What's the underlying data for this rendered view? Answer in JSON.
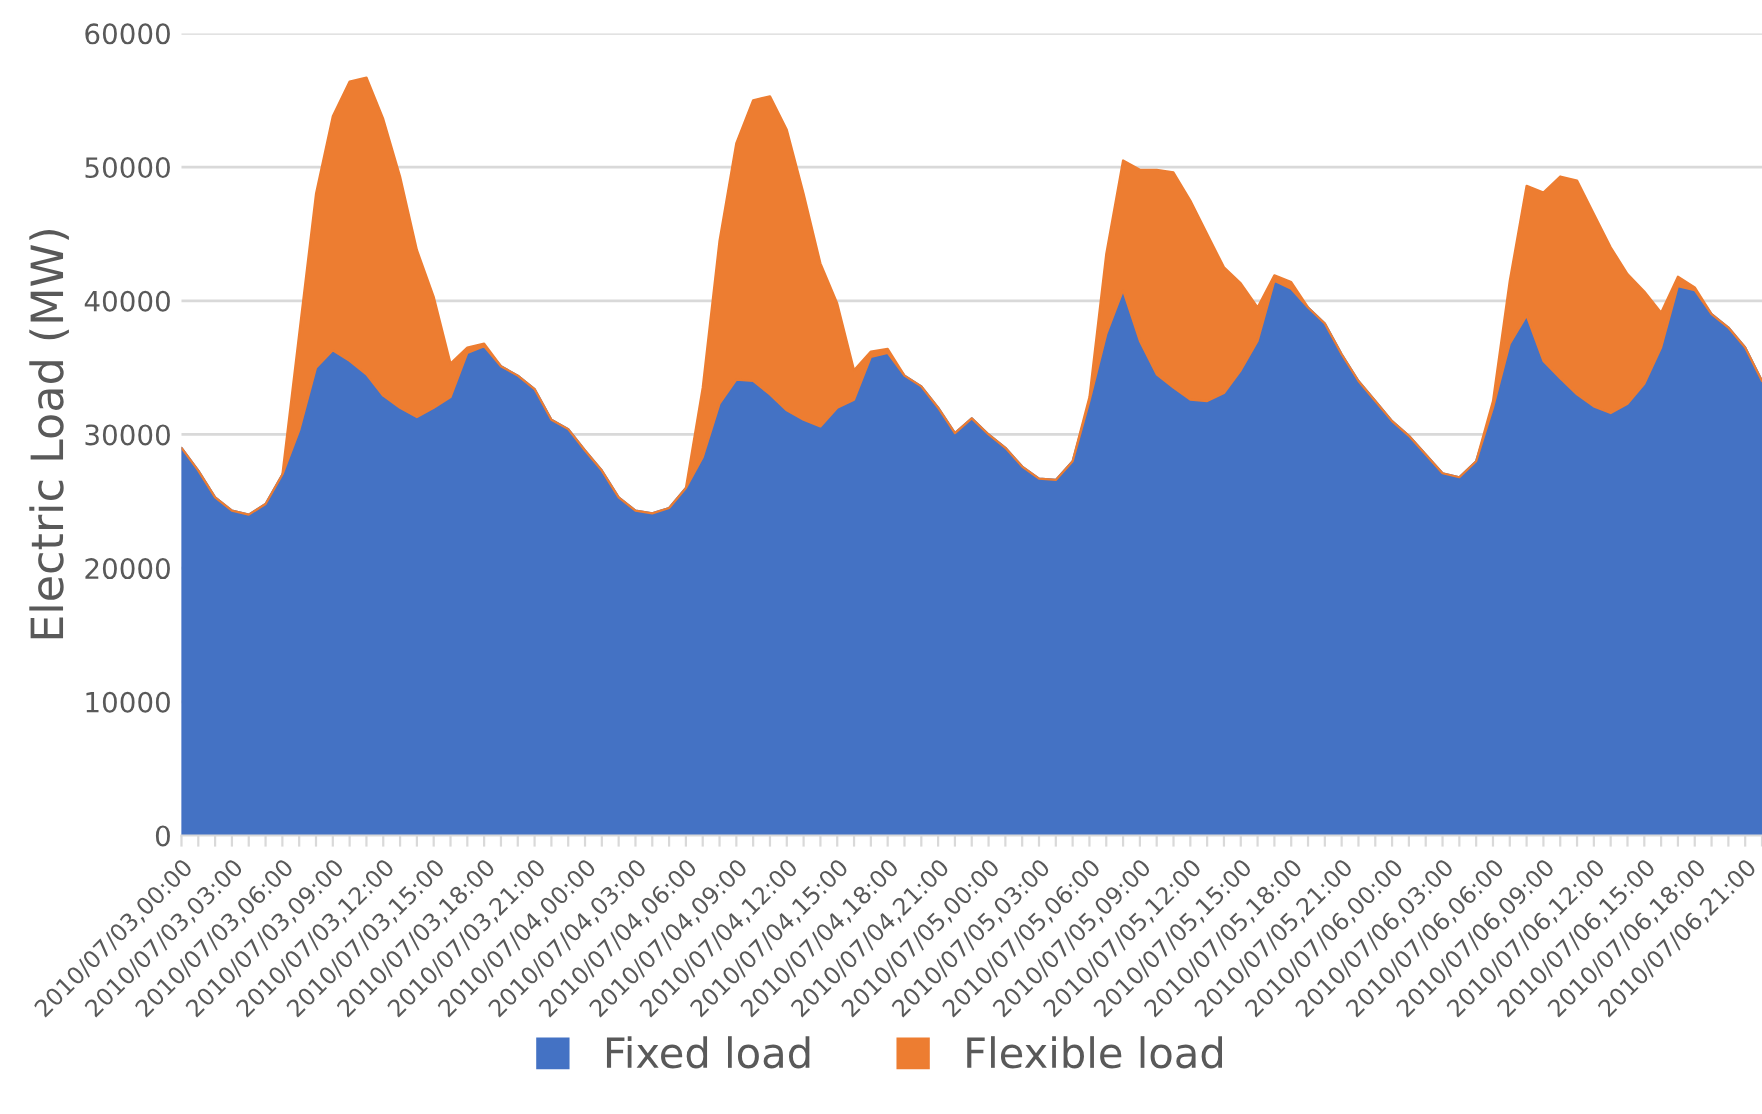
{
  "chart_data": {
    "type": "area",
    "stacked": true,
    "ylabel": "Electric Load (MW)",
    "categories": [
      "2010/07/03,00:00",
      null,
      null,
      "2010/07/03,03:00",
      null,
      null,
      "2010/07/03,06:00",
      null,
      null,
      "2010/07/03,09:00",
      null,
      null,
      "2010/07/03,12:00",
      null,
      null,
      "2010/07/03,15:00",
      null,
      null,
      "2010/07/03,18:00",
      null,
      null,
      "2010/07/03,21:00",
      null,
      null,
      "2010/07/04,00:00",
      null,
      null,
      "2010/07/04,03:00",
      null,
      null,
      "2010/07/04,06:00",
      null,
      null,
      "2010/07/04,09:00",
      null,
      null,
      "2010/07/04,12:00",
      null,
      null,
      "2010/07/04,15:00",
      null,
      null,
      "2010/07/04,18:00",
      null,
      null,
      "2010/07/04,21:00",
      null,
      null,
      "2010/07/05,00:00",
      null,
      null,
      "2010/07/05,03:00",
      null,
      null,
      "2010/07/05,06:00",
      null,
      null,
      "2010/07/05,09:00",
      null,
      null,
      "2010/07/05,12:00",
      null,
      null,
      "2010/07/05,15:00",
      null,
      null,
      "2010/07/05,18:00",
      null,
      null,
      "2010/07/05,21:00",
      null,
      null,
      "2010/07/06,00:00",
      null,
      null,
      "2010/07/06,03:00",
      null,
      null,
      "2010/07/06,06:00",
      null,
      null,
      "2010/07/06,09:00",
      null,
      null,
      "2010/07/06,12:00",
      null,
      null,
      "2010/07/06,15:00",
      null,
      null,
      "2010/07/06,18:00",
      null,
      null,
      "2010/07/06,21:00",
      null
    ],
    "series": [
      {
        "name": "Fixed load",
        "color": "#4472c4",
        "values": [
          29000,
          27300,
          25300,
          24300,
          24000,
          24800,
          27000,
          30300,
          35000,
          36300,
          35500,
          34500,
          32900,
          32000,
          31300,
          32000,
          32800,
          36100,
          36600,
          35100,
          34400,
          33400,
          31100,
          30400,
          28800,
          27300,
          25300,
          24300,
          24100,
          24500,
          26000,
          28300,
          32300,
          34100,
          34000,
          33000,
          31800,
          31100,
          30600,
          32000,
          32600,
          35800,
          36100,
          34400,
          33600,
          32000,
          30100,
          31200,
          30000,
          29000,
          27600,
          26700,
          26600,
          28000,
          32500,
          37500,
          40800,
          37000,
          34500,
          33500,
          32600,
          32500,
          33100,
          34800,
          37000,
          41500,
          40900,
          39500,
          38300,
          36000,
          34000,
          32500,
          31000,
          29900,
          28500,
          27100,
          26800,
          28000,
          32000,
          36800,
          38900,
          35500,
          34200,
          33000,
          32100,
          31600,
          32300,
          33800,
          36500,
          41100,
          40800,
          39000,
          38000,
          36500,
          34000
        ]
      },
      {
        "name": "Flexible load",
        "color": "#ed7d31",
        "values": [
          0,
          0,
          0,
          0,
          0,
          0,
          0,
          7200,
          13000,
          17500,
          20900,
          22200,
          20700,
          17300,
          12500,
          8300,
          2500,
          400,
          200,
          0,
          0,
          0,
          0,
          0,
          0,
          0,
          0,
          0,
          0,
          0,
          0,
          5200,
          12200,
          17700,
          21000,
          22300,
          21000,
          16900,
          12200,
          7800,
          2200,
          400,
          300,
          0,
          0,
          0,
          0,
          0,
          0,
          0,
          0,
          0,
          0,
          0,
          300,
          6000,
          9700,
          12800,
          15300,
          16100,
          14900,
          12500,
          9400,
          6500,
          2500,
          400,
          500,
          0,
          0,
          0,
          0,
          0,
          0,
          0,
          0,
          0,
          0,
          0,
          500,
          4700,
          9700,
          12600,
          15100,
          16000,
          14400,
          12400,
          9700,
          6900,
          2600,
          700,
          200,
          0,
          0,
          0,
          0
        ]
      }
    ],
    "ylim": [
      0,
      60000
    ],
    "yticks": [
      0,
      10000,
      20000,
      30000,
      40000,
      50000,
      60000
    ],
    "grid": "y",
    "legend": "bottom"
  }
}
